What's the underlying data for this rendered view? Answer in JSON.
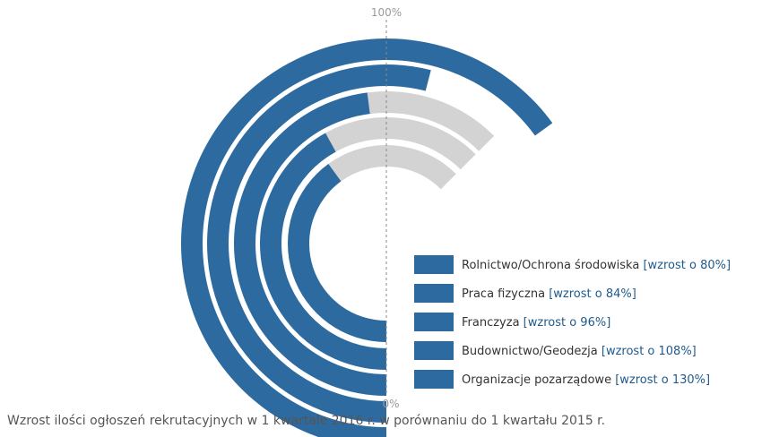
{
  "chart_data": {
    "type": "radial-bar",
    "scale_top_label": "100%",
    "scale_bottom_label": "0%",
    "caption": "Wzrost ilości ogłoszeń rekrutacyjnych w 1 kwartale 2016 r. w porównaniu do 1 kwartału 2015 r.",
    "series": [
      {
        "name": "Rolnictwo/Ochrona środowiska",
        "tag": "[wzrost o 80%]",
        "value": 80
      },
      {
        "name": "Praca fizyczna",
        "tag": "[wzrost o 84%]",
        "value": 84
      },
      {
        "name": "Franczyza",
        "tag": "[wzrost o 96%]",
        "value": 96
      },
      {
        "name": "Budownictwo/Geodezja",
        "tag": "[wzrost o 108%]",
        "value": 108
      },
      {
        "name": "Organizacje pozarządowe",
        "tag": "[wzrost o 130%]",
        "value": 130
      }
    ],
    "colors": {
      "bar": "#2d6a9f",
      "track": "#d3d3d3",
      "tag_text": "#1e5a8c",
      "axis_line": "#888888"
    }
  }
}
